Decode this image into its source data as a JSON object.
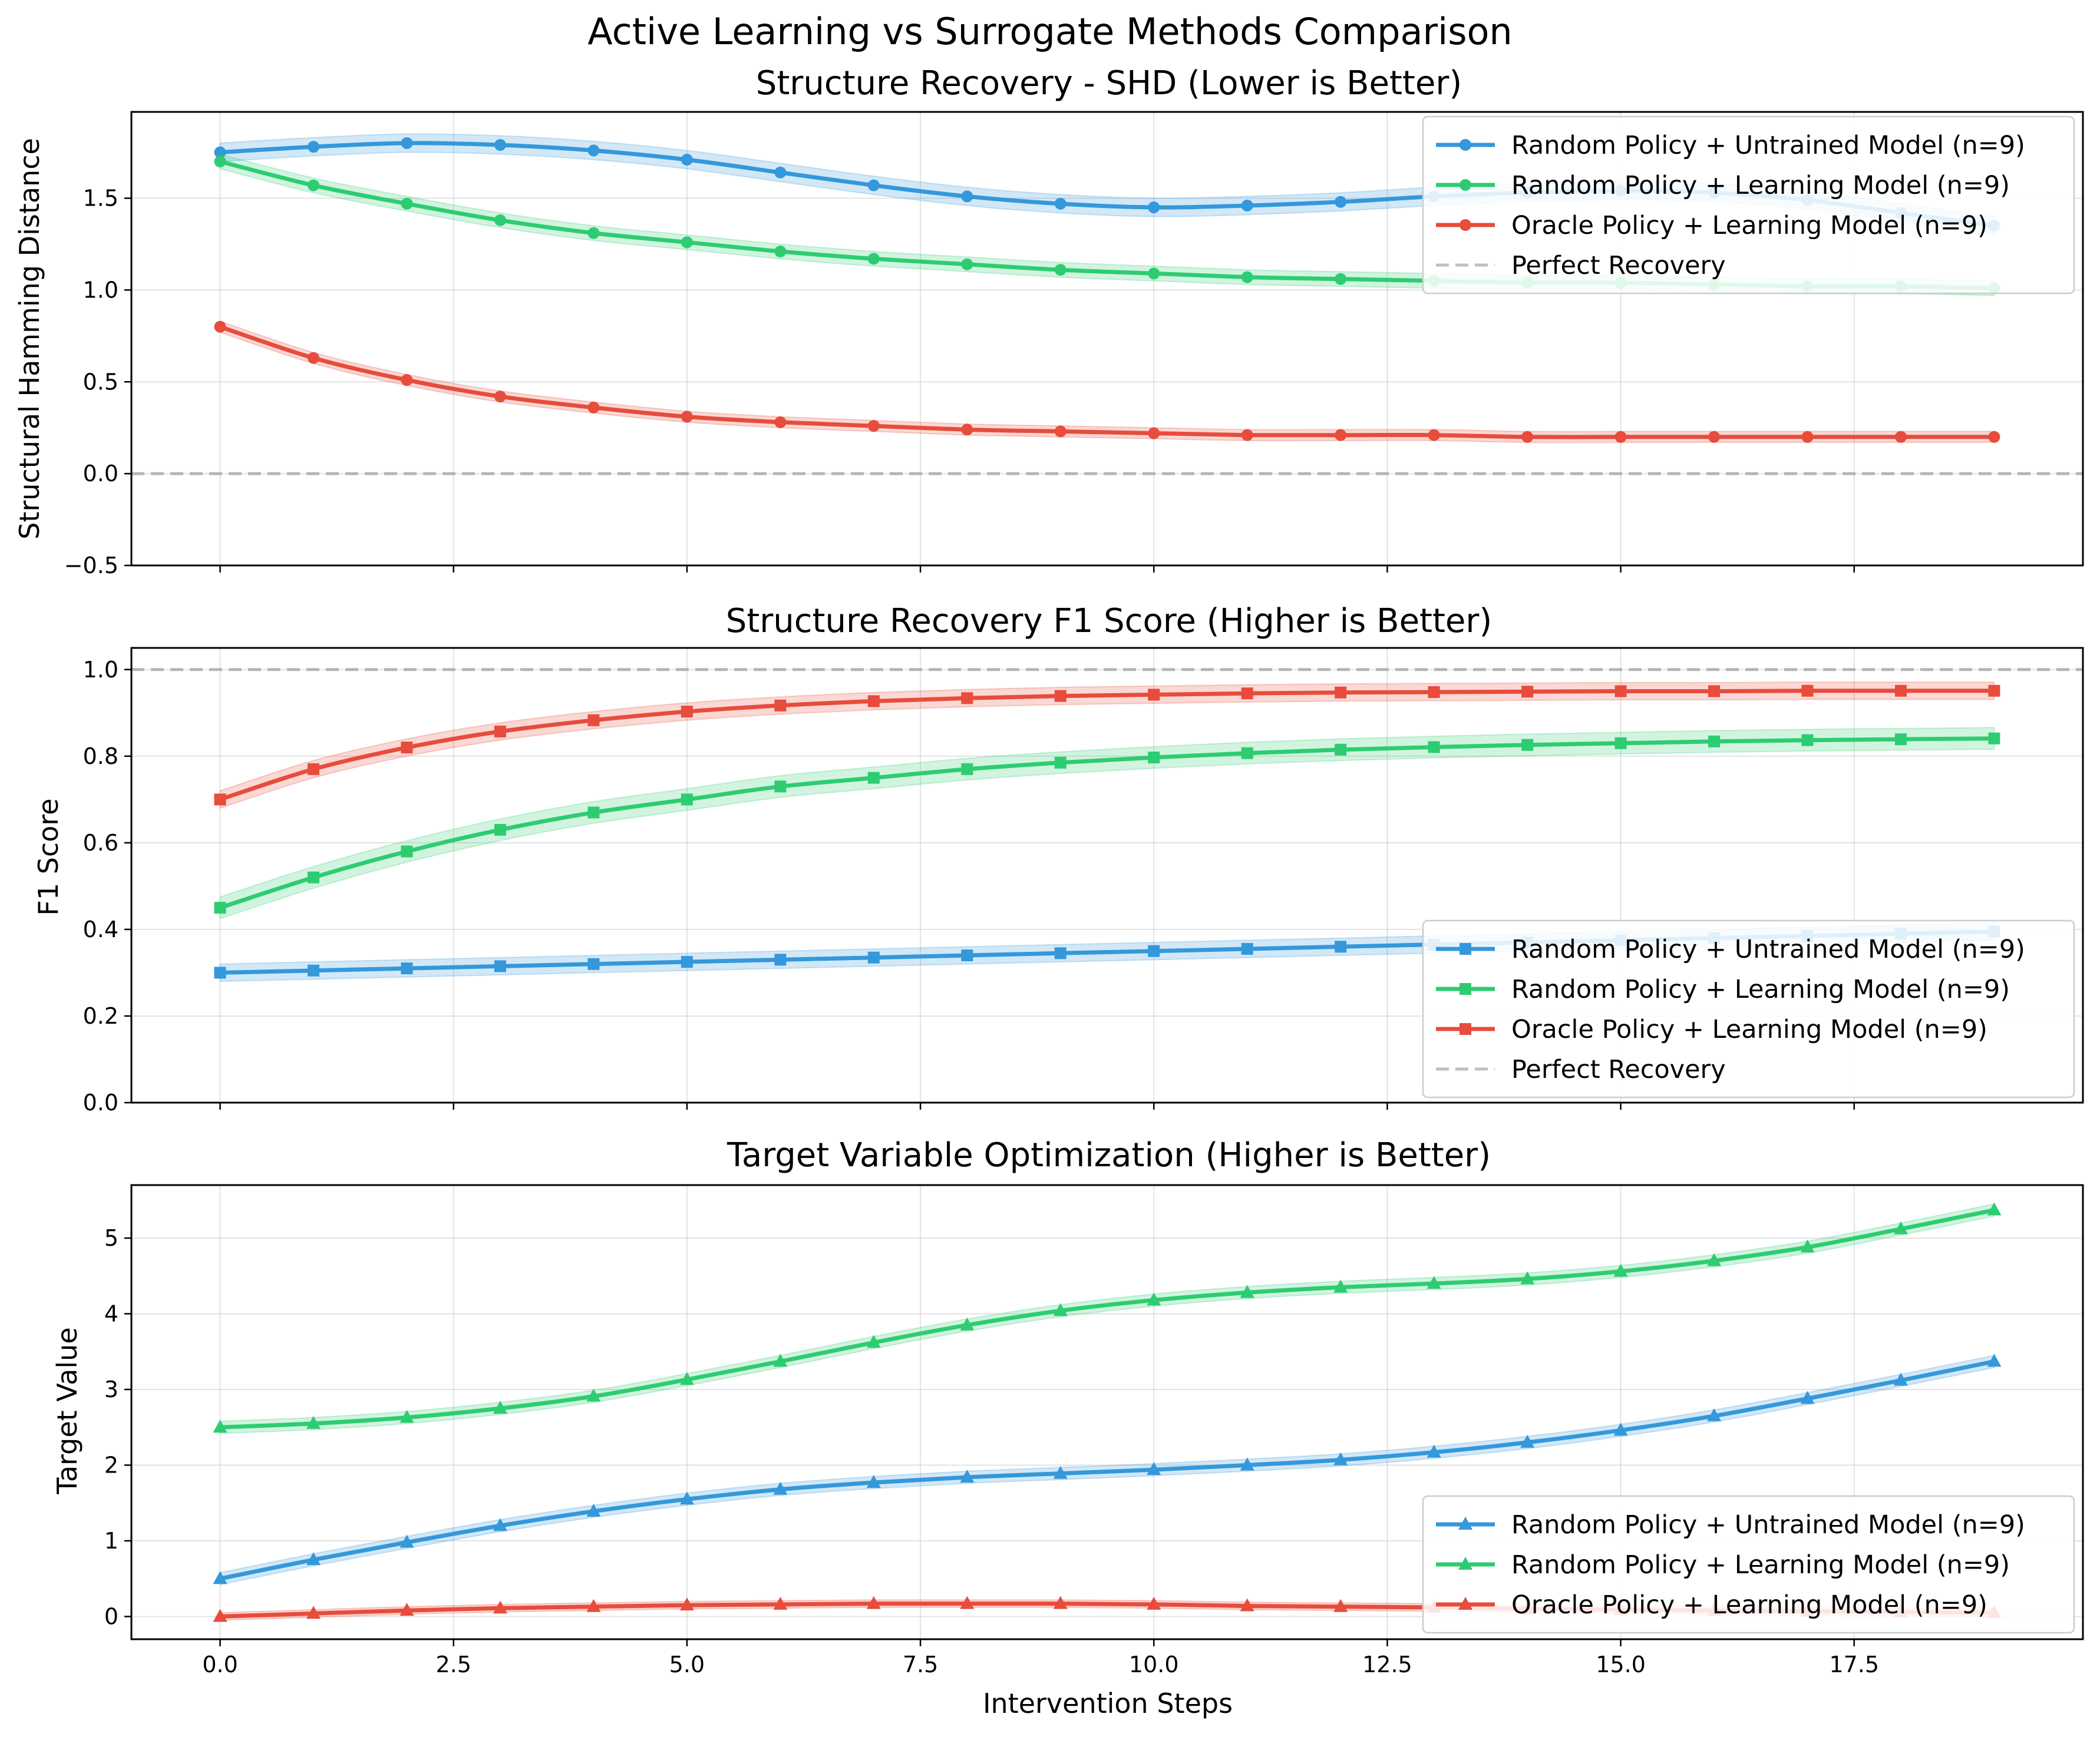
{
  "figure": {
    "suptitle": "Active Learning vs Surrogate Methods Comparison",
    "xlabel": "Intervention Steps"
  },
  "chart_data": [
    {
      "type": "line",
      "title": "Structure Recovery - SHD (Lower is Better)",
      "xlabel": "Intervention Steps",
      "ylabel": "Structural Hamming Distance",
      "xlim": [
        -0.95,
        19.95
      ],
      "ylim": [
        -0.5,
        1.97
      ],
      "xticks": [
        "0.0",
        "2.5",
        "5.0",
        "7.5",
        "10.0",
        "12.5",
        "15.0",
        "17.5"
      ],
      "yticks": [
        "−0.5",
        "0.0",
        "0.5",
        "1.0",
        "1.5"
      ],
      "ytick_values": [
        -0.5,
        0,
        0.5,
        1.0,
        1.5
      ],
      "grid": true,
      "legend_position": "upper right",
      "marker": "circle",
      "x": [
        0,
        1,
        2,
        3,
        4,
        5,
        6,
        7,
        8,
        9,
        10,
        11,
        12,
        13,
        14,
        15,
        16,
        17,
        18,
        19
      ],
      "series": [
        {
          "name": "Random Policy + Untrained Model (n=9)",
          "color": "#3498db",
          "values": [
            1.75,
            1.78,
            1.8,
            1.79,
            1.76,
            1.71,
            1.64,
            1.57,
            1.51,
            1.47,
            1.45,
            1.46,
            1.48,
            1.51,
            1.53,
            1.54,
            1.53,
            1.49,
            1.42,
            1.35
          ],
          "band": 0.05
        },
        {
          "name": "Random Policy + Learning Model (n=9)",
          "color": "#2ecc71",
          "values": [
            1.7,
            1.57,
            1.47,
            1.38,
            1.31,
            1.26,
            1.21,
            1.17,
            1.14,
            1.11,
            1.09,
            1.07,
            1.06,
            1.05,
            1.04,
            1.04,
            1.03,
            1.02,
            1.02,
            1.01
          ],
          "band": 0.04
        },
        {
          "name": "Oracle Policy + Learning Model (n=9)",
          "color": "#e74c3c",
          "values": [
            0.8,
            0.63,
            0.51,
            0.42,
            0.36,
            0.31,
            0.28,
            0.26,
            0.24,
            0.23,
            0.22,
            0.21,
            0.21,
            0.21,
            0.2,
            0.2,
            0.2,
            0.2,
            0.2,
            0.2
          ],
          "band": 0.03
        }
      ],
      "reference": {
        "name": "Perfect Recovery",
        "value": 0.0,
        "color": "#aaaaaa"
      }
    },
    {
      "type": "line",
      "title": "Structure Recovery F1 Score (Higher is Better)",
      "xlabel": "Intervention Steps",
      "ylabel": "F1 Score",
      "xlim": [
        -0.95,
        19.95
      ],
      "ylim": [
        0.0,
        1.05
      ],
      "xticks": [
        "0.0",
        "2.5",
        "5.0",
        "7.5",
        "10.0",
        "12.5",
        "15.0",
        "17.5"
      ],
      "yticks": [
        "0.0",
        "0.2",
        "0.4",
        "0.6",
        "0.8",
        "1.0"
      ],
      "ytick_values": [
        0,
        0.2,
        0.4,
        0.6,
        0.8,
        1.0
      ],
      "grid": true,
      "legend_position": "lower right",
      "marker": "square",
      "x": [
        0,
        1,
        2,
        3,
        4,
        5,
        6,
        7,
        8,
        9,
        10,
        11,
        12,
        13,
        14,
        15,
        16,
        17,
        18,
        19
      ],
      "series": [
        {
          "name": "Random Policy + Untrained Model (n=9)",
          "color": "#3498db",
          "values": [
            0.3,
            0.305,
            0.31,
            0.315,
            0.32,
            0.325,
            0.33,
            0.335,
            0.34,
            0.345,
            0.35,
            0.355,
            0.36,
            0.365,
            0.37,
            0.375,
            0.38,
            0.385,
            0.39,
            0.395
          ],
          "band": 0.02
        },
        {
          "name": "Random Policy + Learning Model (n=9)",
          "color": "#2ecc71",
          "values": [
            0.45,
            0.52,
            0.58,
            0.63,
            0.67,
            0.7,
            0.73,
            0.75,
            0.77,
            0.785,
            0.797,
            0.807,
            0.815,
            0.821,
            0.826,
            0.83,
            0.834,
            0.837,
            0.839,
            0.841
          ],
          "band": 0.025
        },
        {
          "name": "Oracle Policy + Learning Model (n=9)",
          "color": "#e74c3c",
          "values": [
            0.7,
            0.77,
            0.82,
            0.857,
            0.883,
            0.903,
            0.917,
            0.927,
            0.934,
            0.939,
            0.942,
            0.945,
            0.947,
            0.948,
            0.949,
            0.95,
            0.95,
            0.951,
            0.951,
            0.951
          ],
          "band": 0.02
        }
      ],
      "reference": {
        "name": "Perfect Recovery",
        "value": 1.0,
        "color": "#aaaaaa"
      }
    },
    {
      "type": "line",
      "title": "Target Variable Optimization (Higher is Better)",
      "xlabel": "Intervention Steps",
      "ylabel": "Target Value",
      "xlim": [
        -0.95,
        19.95
      ],
      "ylim": [
        -0.3,
        5.7
      ],
      "xticks": [
        "0.0",
        "2.5",
        "5.0",
        "7.5",
        "10.0",
        "12.5",
        "15.0",
        "17.5"
      ],
      "yticks": [
        "0",
        "1",
        "2",
        "3",
        "4",
        "5"
      ],
      "ytick_values": [
        0,
        1,
        2,
        3,
        4,
        5
      ],
      "grid": true,
      "legend_position": "lower right",
      "marker": "triangle",
      "x": [
        0,
        1,
        2,
        3,
        4,
        5,
        6,
        7,
        8,
        9,
        10,
        11,
        12,
        13,
        14,
        15,
        16,
        17,
        18,
        19
      ],
      "series": [
        {
          "name": "Random Policy + Untrained Model (n=9)",
          "color": "#3498db",
          "values": [
            0.5,
            0.75,
            0.98,
            1.2,
            1.39,
            1.55,
            1.68,
            1.77,
            1.84,
            1.89,
            1.94,
            2.0,
            2.07,
            2.17,
            2.3,
            2.46,
            2.65,
            2.88,
            3.12,
            3.37
          ],
          "band": 0.08
        },
        {
          "name": "Random Policy + Learning Model (n=9)",
          "color": "#2ecc71",
          "values": [
            2.5,
            2.55,
            2.63,
            2.75,
            2.91,
            3.13,
            3.37,
            3.62,
            3.85,
            4.04,
            4.18,
            4.28,
            4.35,
            4.4,
            4.46,
            4.56,
            4.7,
            4.88,
            5.12,
            5.37
          ],
          "band": 0.08
        },
        {
          "name": "Oracle Policy + Learning Model (n=9)",
          "color": "#e74c3c",
          "values": [
            0.0,
            0.04,
            0.08,
            0.11,
            0.13,
            0.15,
            0.16,
            0.17,
            0.17,
            0.17,
            0.16,
            0.14,
            0.13,
            0.12,
            0.1,
            0.09,
            0.08,
            0.07,
            0.06,
            0.05
          ],
          "band": 0.05
        }
      ]
    }
  ]
}
